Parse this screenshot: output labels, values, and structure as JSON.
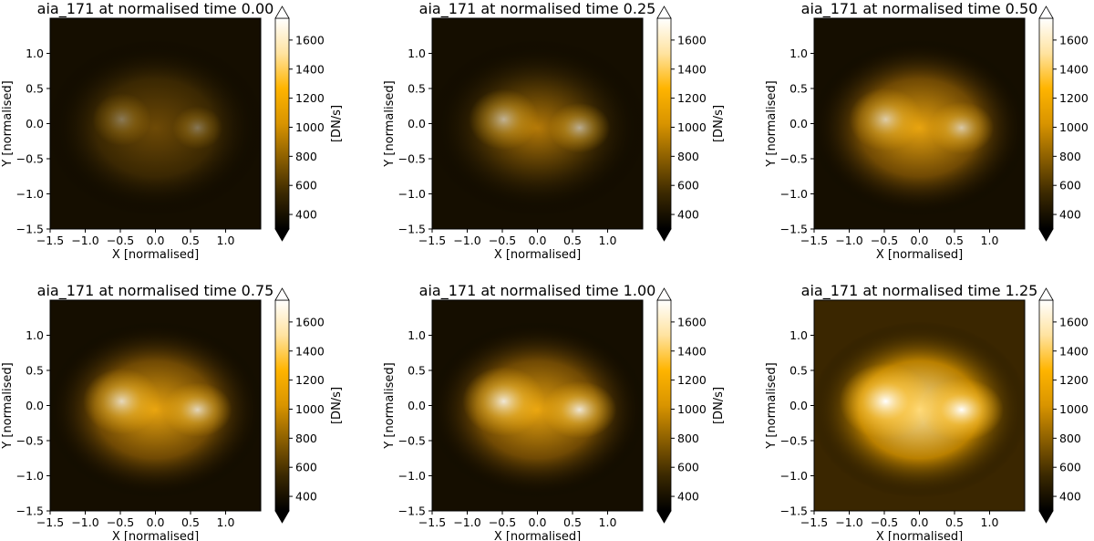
{
  "figure": {
    "colormap_stops": [
      "#000000",
      "#3a2800",
      "#8a5e00",
      "#d89400",
      "#ffb400",
      "#ffe3a0",
      "#ffffff"
    ],
    "colorbar": {
      "label": "[DN/s]",
      "ticks": [
        "400",
        "600",
        "800",
        "1000",
        "1200",
        "1400",
        "1600"
      ],
      "range": [
        300,
        1750
      ],
      "extend": "both"
    }
  },
  "chart_data": [
    {
      "type": "heatmap",
      "title": "aia_171 at normalised time 0.00",
      "xlabel": "X [normalised]",
      "ylabel": "Y [normalised]",
      "xlim": [
        -1.5,
        1.5
      ],
      "ylim": [
        -1.5,
        1.5
      ],
      "xticks": [
        "−1.5",
        "−1.0",
        "−0.5",
        "0.0",
        "0.5",
        "1.0"
      ],
      "yticks": [
        "−1.5",
        "−1.0",
        "−0.5",
        "0.0",
        "0.5",
        "1.0"
      ],
      "colorbar_label": "[DN/s]",
      "brightness": 0.32
    },
    {
      "type": "heatmap",
      "title": "aia_171 at normalised time 0.25",
      "xlabel": "X [normalised]",
      "ylabel": "Y [normalised]",
      "xlim": [
        -1.5,
        1.5
      ],
      "ylim": [
        -1.5,
        1.5
      ],
      "xticks": [
        "−1.5",
        "−1.0",
        "−0.5",
        "0.0",
        "0.5",
        "1.0"
      ],
      "yticks": [
        "−1.5",
        "−1.0",
        "−0.5",
        "0.0",
        "0.5",
        "1.0"
      ],
      "colorbar_label": "[DN/s]",
      "brightness": 0.55
    },
    {
      "type": "heatmap",
      "title": "aia_171 at normalised time 0.50",
      "xlabel": "X [normalised]",
      "ylabel": "Y [normalised]",
      "xlim": [
        -1.5,
        1.5
      ],
      "ylim": [
        -1.5,
        1.5
      ],
      "xticks": [
        "−1.5",
        "−1.0",
        "−0.5",
        "0.0",
        "0.5",
        "1.0"
      ],
      "yticks": [
        "−1.5",
        "−1.0",
        "−0.5",
        "0.0",
        "0.5",
        "1.0"
      ],
      "colorbar_label": "[DN/s]",
      "brightness": 0.62
    },
    {
      "type": "heatmap",
      "title": "aia_171 at normalised time 0.75",
      "xlabel": "X [normalised]",
      "ylabel": "Y [normalised]",
      "xlim": [
        -1.5,
        1.5
      ],
      "ylim": [
        -1.5,
        1.5
      ],
      "xticks": [
        "−1.5",
        "−1.0",
        "−0.5",
        "0.0",
        "0.5",
        "1.0"
      ],
      "yticks": [
        "−1.5",
        "−1.0",
        "−0.5",
        "0.0",
        "0.5",
        "1.0"
      ],
      "colorbar_label": "[DN/s]",
      "brightness": 0.7
    },
    {
      "type": "heatmap",
      "title": "aia_171 at normalised time 1.00",
      "xlabel": "X [normalised]",
      "ylabel": "Y [normalised]",
      "xlim": [
        -1.5,
        1.5
      ],
      "ylim": [
        -1.5,
        1.5
      ],
      "xticks": [
        "−1.5",
        "−1.0",
        "−0.5",
        "0.0",
        "0.5",
        "1.0"
      ],
      "yticks": [
        "−1.5",
        "−1.0",
        "−0.5",
        "0.0",
        "0.5",
        "1.0"
      ],
      "colorbar_label": "[DN/s]",
      "brightness": 0.8
    },
    {
      "type": "heatmap",
      "title": "aia_171 at normalised time 1.25",
      "xlabel": "X [normalised]",
      "ylabel": "Y [normalised]",
      "xlim": [
        -1.5,
        1.5
      ],
      "ylim": [
        -1.5,
        1.5
      ],
      "xticks": [
        "−1.5",
        "−1.0",
        "−0.5",
        "0.0",
        "0.5",
        "1.0"
      ],
      "yticks": [
        "−1.5",
        "−1.0",
        "−0.5",
        "0.0",
        "0.5",
        "1.0"
      ],
      "colorbar_label": "[DN/s]",
      "brightness": 1.0
    }
  ]
}
